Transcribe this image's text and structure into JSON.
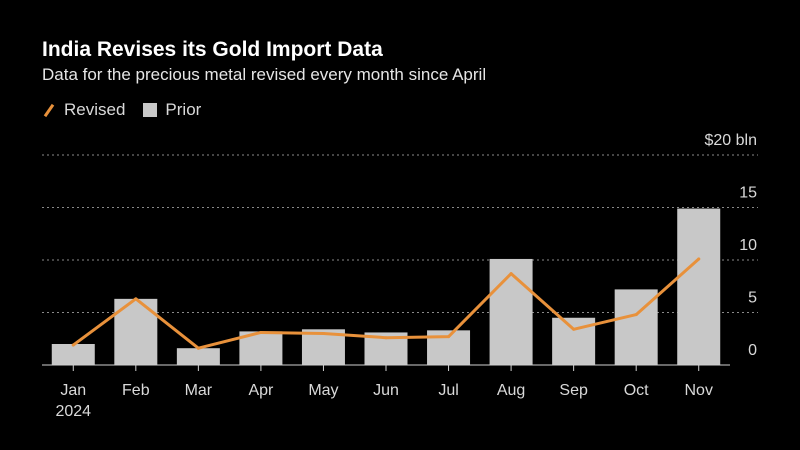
{
  "colors": {
    "background": "#000000",
    "revised_line": "#e8913b",
    "prior_bar": "#c8c8c8",
    "grid": "#8a8a8a",
    "text": "#d9d9d9"
  },
  "chart_data": {
    "type": "bar",
    "title": "India Revises its Gold Import Data",
    "subtitle": "Data for the precious metal revised every month since April",
    "unit_label": "$20 bln",
    "categories": [
      "Jan",
      "Feb",
      "Mar",
      "Apr",
      "May",
      "Jun",
      "Jul",
      "Aug",
      "Sep",
      "Oct",
      "Nov"
    ],
    "year_label": "2024",
    "ylim": [
      0,
      20
    ],
    "yticks": [
      0,
      5,
      10,
      15,
      20
    ],
    "grid": true,
    "legend_position": "top-left",
    "series": [
      {
        "name": "Revised",
        "type": "line",
        "values": [
          1.9,
          6.3,
          1.6,
          3.1,
          3.0,
          2.6,
          2.7,
          8.7,
          3.4,
          4.8,
          10.1
        ]
      },
      {
        "name": "Prior",
        "type": "bar",
        "values": [
          2.0,
          6.3,
          1.6,
          3.2,
          3.4,
          3.1,
          3.3,
          10.1,
          4.5,
          7.2,
          14.9
        ]
      }
    ]
  }
}
